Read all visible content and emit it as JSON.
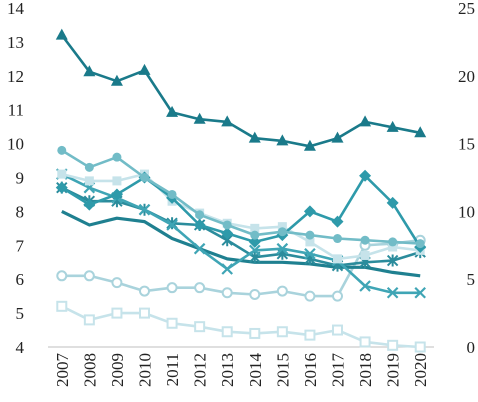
{
  "chart_data": {
    "type": "line",
    "categories": [
      "2007",
      "2008",
      "2009",
      "2010",
      "2011",
      "2012",
      "2013",
      "2014",
      "2015",
      "2016",
      "2017",
      "2018",
      "2019",
      "2020"
    ],
    "title": "",
    "xlabel": "",
    "ylabel": "",
    "ylim": [
      4,
      14
    ],
    "y2lim": [
      0,
      25
    ],
    "y_ticks": [
      "4",
      "5",
      "6",
      "7",
      "8",
      "9",
      "10",
      "11",
      "12",
      "13",
      "14"
    ],
    "y2_ticks": [
      "0",
      "5",
      "10",
      "15",
      "20",
      "25"
    ],
    "grid": false,
    "series": [
      {
        "axis": "right",
        "color": "#1a7a8a",
        "marker": "filled-triangle",
        "values": [
          23.0,
          20.3,
          19.6,
          20.4,
          17.3,
          16.8,
          16.6,
          15.4,
          15.2,
          14.8,
          15.4,
          16.6,
          16.2,
          15.8
        ]
      },
      {
        "axis": "left",
        "color": "#72bcc7",
        "marker": "filled-circle",
        "values": [
          9.8,
          9.3,
          9.6,
          9.0,
          8.5,
          7.9,
          7.6,
          7.3,
          7.4,
          7.3,
          7.2,
          7.15,
          7.1,
          7.05
        ]
      },
      {
        "axis": "left",
        "color": "#2e9aaa",
        "marker": "filled-diamond",
        "values": [
          8.7,
          8.2,
          8.5,
          9.0,
          8.4,
          7.6,
          7.35,
          7.1,
          7.3,
          8.0,
          7.7,
          9.05,
          8.25,
          6.95
        ]
      },
      {
        "axis": "left",
        "color": "#c6e3ea",
        "marker": "filled-square",
        "values": [
          9.1,
          8.9,
          8.9,
          9.1,
          8.3,
          7.95,
          7.65,
          7.5,
          7.55,
          7.1,
          6.6,
          6.7,
          6.95,
          6.85
        ]
      },
      {
        "axis": "left",
        "color": "#3fa5b5",
        "marker": "x",
        "values": [
          9.1,
          8.7,
          8.4,
          8.05,
          7.6,
          6.9,
          6.3,
          6.85,
          6.9,
          6.75,
          6.55,
          5.8,
          5.6,
          5.6
        ]
      },
      {
        "axis": "left",
        "color": "#2b8c9c",
        "marker": "star",
        "values": [
          8.7,
          8.3,
          8.3,
          8.05,
          7.65,
          7.6,
          7.15,
          6.65,
          6.75,
          6.6,
          6.4,
          6.5,
          6.55,
          6.8
        ]
      },
      {
        "axis": "left",
        "color": "#1f8090",
        "marker": "none",
        "values": [
          8.0,
          7.6,
          7.8,
          7.7,
          7.2,
          6.9,
          6.6,
          6.5,
          6.5,
          6.45,
          6.35,
          6.35,
          6.2,
          6.1
        ]
      },
      {
        "axis": "left",
        "color": "#a9d3dc",
        "marker": "hollow-circle",
        "values": [
          6.1,
          6.1,
          5.9,
          5.65,
          5.75,
          5.75,
          5.6,
          5.55,
          5.65,
          5.5,
          5.5,
          7.0,
          7.05,
          7.15
        ]
      },
      {
        "axis": "left",
        "color": "#c6e3ea",
        "marker": "hollow-square",
        "values": [
          5.2,
          4.8,
          5.0,
          5.0,
          4.7,
          4.6,
          4.45,
          4.4,
          4.45,
          4.35,
          4.5,
          4.15,
          4.05,
          4.0
        ]
      }
    ]
  }
}
